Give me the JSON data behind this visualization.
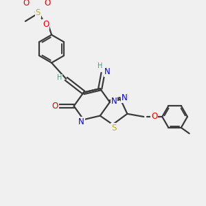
{
  "bg_color": "#f0f0f0",
  "bond_color": "#3a3a3a",
  "bond_width": 1.6,
  "atom_colors": {
    "N": "#0000ee",
    "O": "#ee0000",
    "S": "#bbbb00",
    "H_teal": "#4a9a8a",
    "C": "#3a3a3a"
  },
  "font_size": 8.5,
  "font_size_small": 7.0
}
